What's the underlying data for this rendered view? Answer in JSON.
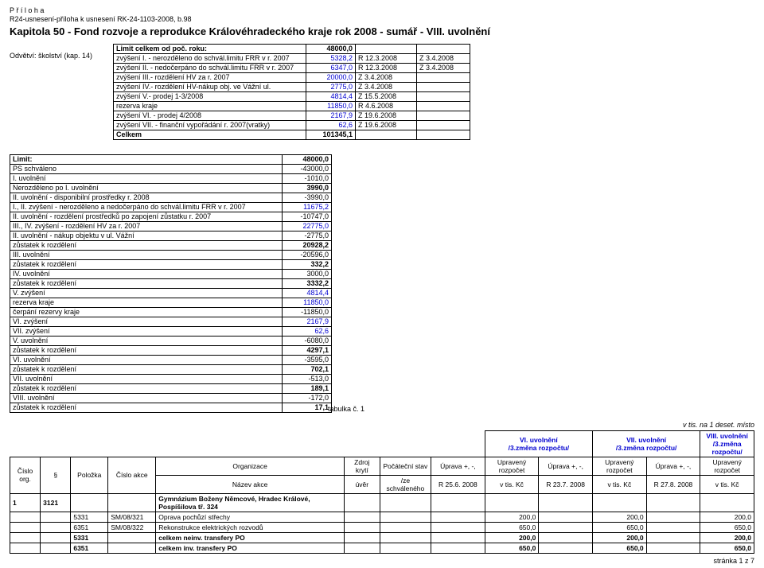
{
  "meta": {
    "priloha": "P ř í l o h a",
    "ref": "R24-usnesení-příloha k usnesení RK-24-1103-2008, b.98",
    "title": "Kapitola 50 - Fond rozvoje a reprodukce Královéhradeckého kraje rok 2008 - sumář - VIII. uvolnění",
    "odvetvi": "Odvětví: školství  (kap. 14)",
    "tabulka_label": "tabulka č. 1",
    "vtis": "v tis. na 1 deset. místo",
    "footer": "stránka 1 z 7"
  },
  "colors": {
    "blue": "#0000d0",
    "red": "#d00000",
    "maroon": "#800000"
  },
  "top_table": {
    "col_widths": [
      "235px",
      "55px",
      "70px",
      "60px"
    ],
    "rows": [
      {
        "label": "Limit celkem od poč. roku:",
        "val": "48000,0",
        "c3": "",
        "c4": "",
        "bold": true
      },
      {
        "label": "zvýšení I. - nerozděleno  do schvál.limitu FRR v r. 2007",
        "val": "5328,2",
        "c3": "R 12.3.2008",
        "c4": "Z 3.4.2008",
        "val_color": "#0000d0"
      },
      {
        "label": "zvýšení II.  - nedočerpáno do schvál.limitu FRR v r. 2007",
        "val": "6347,0",
        "c3": "R 12.3.2008",
        "c4": "Z 3.4.2008",
        "val_color": "#0000d0"
      },
      {
        "label": "zvýšení III.- rozdělení HV za r. 2007",
        "val": "20000,0",
        "c3": "Z 3.4.2008",
        "c4": "",
        "val_color": "#0000d0"
      },
      {
        "label": "zvýšení IV.- rozdělení HV-nákup obj. ve Vážní ul.",
        "val": "2775,0",
        "c3": "Z 3.4.2008",
        "c4": "",
        "val_color": "#0000d0"
      },
      {
        "label": "zvýšení V.- prodej 1-3/2008",
        "val": "4814,4",
        "c3": "Z 15.5.2008",
        "c4": "",
        "val_color": "#0000d0"
      },
      {
        "label": "rezerva kraje",
        "val": "11850,0",
        "c3": "R 4.6.2008",
        "c4": "",
        "val_color": "#0000d0"
      },
      {
        "label": "zvýšení VI. - prodej 4/2008",
        "val": "2167,9",
        "c3": "Z 19.6.2008",
        "c4": "",
        "val_color": "#0000d0"
      },
      {
        "label": "zvýšení VII. - finanční vypořádání r. 2007(vratky)",
        "val": "62,6",
        "c3": "Z 19.6.2008",
        "c4": "",
        "val_color": "#0000d0"
      },
      {
        "label": "Celkem",
        "val": "101345,1",
        "c3": "",
        "c4": "",
        "bold": true,
        "val_bold": true
      }
    ]
  },
  "summary_table": {
    "col_widths": [
      "335px",
      "55px"
    ],
    "rows": [
      {
        "l": "Limit:",
        "v": "48000,0",
        "lb": true,
        "vb": true
      },
      {
        "l": "PS schváleno",
        "v": "-43000,0"
      },
      {
        "l": "I. uvolnění",
        "v": "-1010,0"
      },
      {
        "l": "Nerozděleno po I. uvolnění",
        "v": "3990,0",
        "vb": true
      },
      {
        "l": "II. uvolnění - disponibilní prostředky r. 2008",
        "v": "-3990,0"
      },
      {
        "l": "I., II. zvýšení - nerozděleno a nedočerpáno do schvál.limitu FRR v r. 2007",
        "v": "11675,2",
        "vc": "#0000d0"
      },
      {
        "l": "II. uvolnění - rozdělení prostředků po zapojení zůstatku r. 2007",
        "v": "-10747,0"
      },
      {
        "l": "III., IV. zvýšení - rozdělení HV za r. 2007",
        "v": "22775,0",
        "vc": "#0000d0"
      },
      {
        "l": "II. uvolnění - nákup objektu v ul. Vážní",
        "v": "-2775,0"
      },
      {
        "l": "zůstatek k rozdělení",
        "v": "20928,2",
        "vb": true
      },
      {
        "l": "III. uvolnění",
        "v": "-20596,0"
      },
      {
        "l": "zůstatek k rozdělení",
        "v": "332,2",
        "vb": true
      },
      {
        "l": "IV. uvolnění",
        "v": "3000,0"
      },
      {
        "l": "zůstatek k rozdělení",
        "v": "3332,2",
        "vb": true
      },
      {
        "l": "V. zvýšení",
        "v": "4814,4",
        "vc": "#0000d0"
      },
      {
        "l": "rezerva kraje",
        "v": "11850,0",
        "vc": "#0000d0"
      },
      {
        "l": "čerpání rezervy kraje",
        "v": "-11850,0"
      },
      {
        "l": "VI. zvýšení",
        "v": "2167,9",
        "vc": "#0000d0"
      },
      {
        "l": "VII. zvýšení",
        "v": "62,6",
        "vc": "#0000d0"
      },
      {
        "l": "V. uvolnění",
        "v": "-6080,0"
      },
      {
        "l": "zůstatek k rozdělení",
        "v": "4297,1",
        "vb": true
      },
      {
        "l": "VI. uvolnění",
        "v": "-3595,0"
      },
      {
        "l": "zůstatek k rozdělení",
        "v": "702,1",
        "vb": true
      },
      {
        "l": "VII. uvolnění",
        "v": "-513,0"
      },
      {
        "l": "zůstatek k rozdělení",
        "v": "189,1",
        "vb": true
      },
      {
        "l": "VIII. uvolnění",
        "v": "-172,0"
      },
      {
        "l": "zůstatek k rozdělení",
        "v": "17,1",
        "vb": true
      }
    ]
  },
  "main_table": {
    "super_headers": [
      {
        "label": "VI. uvolnění",
        "sub": "/3.změna rozpočtu/"
      },
      {
        "label": "VII. uvolnění",
        "sub": "/3.změna rozpočtu/"
      },
      {
        "label": "VIII. uvolnění",
        "sub": "/3.změna rozpočtu/"
      }
    ],
    "headers": {
      "cislo_org": "Číslo org.",
      "par": "§",
      "polozka": "Položka",
      "cislo_akce": "Číslo akce",
      "organizace": "Organizace",
      "nazev": "Název akce",
      "zdroj": "Zdroj krytí",
      "zdroj_sub": "úvěr",
      "pocatecni": "Počáteční stav",
      "pocatecni_sub": "/ze schváleného",
      "uprava": "Úprava +, -,",
      "r256": "R 25.6. 2008",
      "r237": "R 23.7. 2008",
      "r278": "R 27.8. 2008",
      "upraveny": "Upravený rozpočet",
      "vtis": "v tis. Kč"
    },
    "rows": [
      {
        "org": "1",
        "par": "3121",
        "pol": "",
        "akce": "",
        "nazev_org": "Gymnázium Boženy Němcové, Hradec Králové, Pospíšilova tř. 324",
        "nazev": "",
        "v": [
          "",
          "",
          "",
          "",
          "",
          ""
        ],
        "org_bold": true
      },
      {
        "org": "",
        "par": "",
        "pol": "5331",
        "akce": "SM/08/321",
        "nazev": "Oprava pochůzí střechy",
        "v": [
          "",
          "200,0",
          "",
          "200,0",
          "",
          "200,0"
        ]
      },
      {
        "org": "",
        "par": "",
        "pol": "6351",
        "akce": "SM/08/322",
        "nazev": "Rekonstrukce elektrických rozvodů",
        "v": [
          "",
          "650,0",
          "",
          "650,0",
          "",
          "650,0"
        ]
      },
      {
        "org": "",
        "par": "",
        "pol": "5331",
        "akce": "",
        "nazev": "celkem neinv. transfery PO",
        "v": [
          "",
          "200,0",
          "",
          "200,0",
          "",
          "200,0"
        ],
        "bold": true
      },
      {
        "org": "",
        "par": "",
        "pol": "6351",
        "akce": "",
        "nazev": "celkem inv. transfery PO",
        "v": [
          "",
          "650,0",
          "",
          "650,0",
          "",
          "650,0"
        ],
        "bold": true
      }
    ]
  }
}
